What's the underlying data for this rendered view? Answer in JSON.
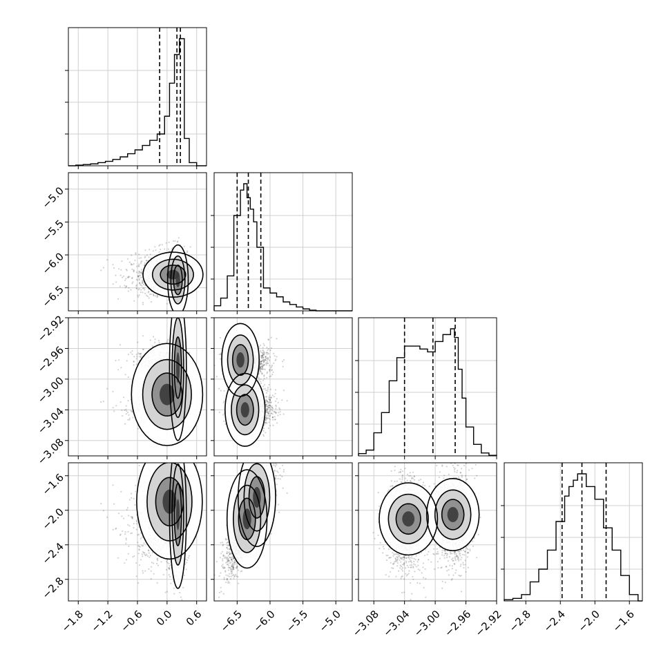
{
  "chart_data": {
    "type": "corner",
    "grid": true,
    "parameters": [
      {
        "ticks": [
          -1.8,
          -1.2,
          -0.6,
          0.0,
          0.6
        ],
        "tick_labels": [
          "−1.8",
          "−1.2",
          "−0.6",
          "0.0",
          "0.6"
        ],
        "range": [
          -2.0,
          0.8
        ],
        "quantiles": [
          -0.15,
          0.2,
          0.27
        ],
        "histogram": {
          "edges": [
            -2.0,
            -1.85,
            -1.7,
            -1.55,
            -1.4,
            -1.25,
            -1.1,
            -0.95,
            -0.8,
            -0.65,
            -0.5,
            -0.35,
            -0.2,
            -0.05,
            0.05,
            0.15,
            0.25,
            0.35,
            0.45,
            0.6,
            0.8
          ],
          "counts": [
            0,
            1,
            2,
            3,
            5,
            7,
            10,
            14,
            19,
            25,
            32,
            40,
            50,
            78,
            130,
            175,
            200,
            43,
            5,
            0
          ]
        }
      },
      {
        "ticks": [
          -6.5,
          -6.0,
          -5.5,
          -5.0
        ],
        "tick_labels": [
          "−6.5",
          "−6.0",
          "−5.5",
          "−5.0"
        ],
        "range": [
          -6.85,
          -4.75
        ],
        "quantiles": [
          -6.5,
          -6.33,
          -6.14
        ],
        "histogram": {
          "edges": [
            -6.85,
            -6.75,
            -6.65,
            -6.55,
            -6.45,
            -6.4,
            -6.35,
            -6.3,
            -6.25,
            -6.2,
            -6.1,
            -6.0,
            -5.9,
            -5.8,
            -5.7,
            -5.6,
            -5.5,
            -5.4,
            -5.3,
            -4.75
          ],
          "counts": [
            8,
            20,
            55,
            150,
            190,
            200,
            178,
            160,
            140,
            100,
            36,
            28,
            22,
            14,
            10,
            6,
            3,
            1,
            0
          ]
        }
      },
      {
        "ticks": [
          -3.08,
          -3.04,
          -3.0,
          -2.96,
          -2.92
        ],
        "tick_labels": [
          "−3.08",
          "−3.04",
          "−3.00",
          "−2.96",
          "−2.92"
        ],
        "range": [
          -3.1,
          -2.92
        ],
        "quantiles": [
          -3.04,
          -3.003,
          -2.974
        ],
        "histogram": {
          "edges": [
            -3.1,
            -3.09,
            -3.08,
            -3.07,
            -3.06,
            -3.05,
            -3.04,
            -3.03,
            -3.02,
            -3.01,
            -3.0,
            -2.99,
            -2.98,
            -2.975,
            -2.97,
            -2.965,
            -2.96,
            -2.95,
            -2.94,
            -2.93,
            -2.92
          ],
          "counts": [
            4,
            10,
            40,
            75,
            130,
            170,
            190,
            190,
            185,
            180,
            198,
            210,
            220,
            205,
            150,
            100,
            50,
            20,
            5,
            1
          ]
        }
      },
      {
        "ticks": [
          -2.8,
          -2.4,
          -2.0,
          -1.6
        ],
        "tick_labels": [
          "−2.8",
          "−2.4",
          "−2.0",
          "−1.6"
        ],
        "range": [
          -3.05,
          -1.45
        ],
        "quantiles": [
          -2.38,
          -2.15,
          -1.87
        ],
        "histogram": {
          "edges": [
            -3.05,
            -2.95,
            -2.85,
            -2.75,
            -2.65,
            -2.55,
            -2.45,
            -2.35,
            -2.3,
            -2.25,
            -2.2,
            -2.15,
            -2.1,
            -2.0,
            -1.9,
            -1.8,
            -1.7,
            -1.6,
            -1.5,
            -1.45
          ],
          "counts": [
            2,
            4,
            10,
            30,
            50,
            80,
            125,
            165,
            180,
            190,
            200,
            200,
            180,
            160,
            115,
            80,
            40,
            10,
            0
          ]
        }
      }
    ]
  }
}
